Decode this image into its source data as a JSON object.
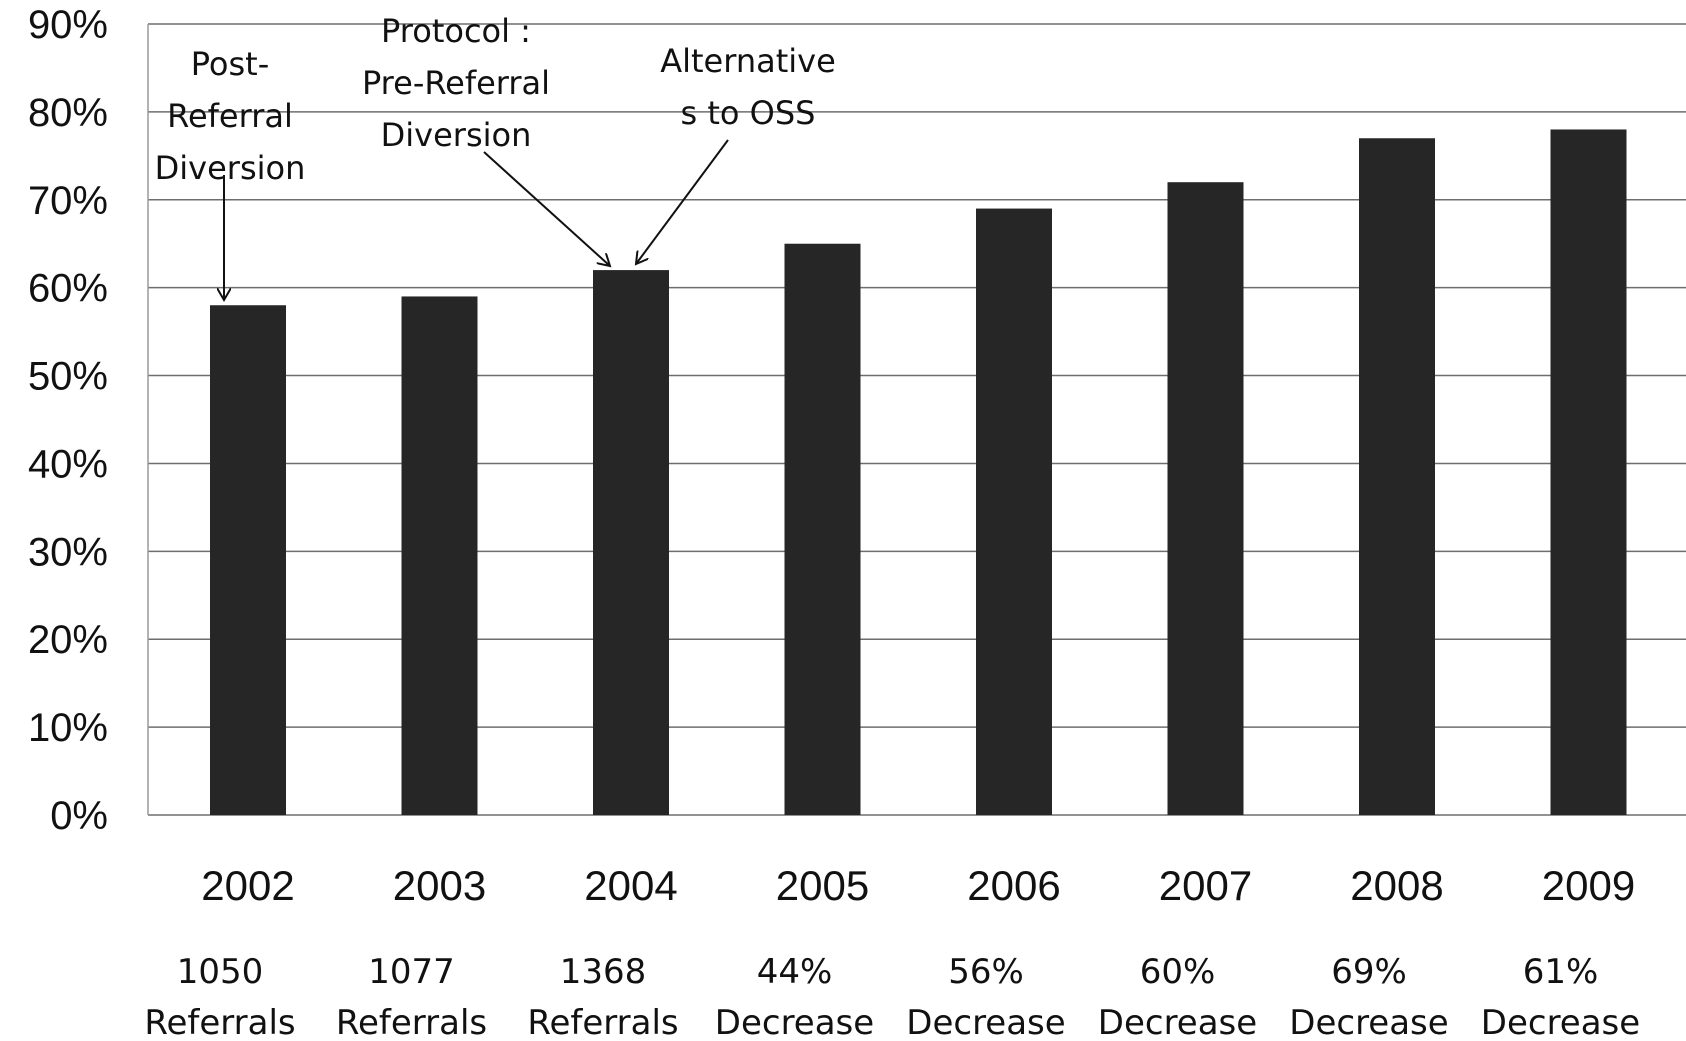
{
  "chart_data": {
    "type": "bar",
    "categories": [
      "2002",
      "2003",
      "2004",
      "2005",
      "2006",
      "2007",
      "2008",
      "2009"
    ],
    "values": [
      58,
      59,
      62,
      65,
      69,
      72,
      77,
      78
    ],
    "sub_labels": [
      [
        "1050",
        "Referrals"
      ],
      [
        "1077",
        "Referrals"
      ],
      [
        "1368",
        "Referrals"
      ],
      [
        "44%",
        "Decrease"
      ],
      [
        "56%",
        "Decrease"
      ],
      [
        "60%",
        "Decrease"
      ],
      [
        "69%",
        "Decrease"
      ],
      [
        "61%",
        "Decrease"
      ]
    ],
    "yticks": [
      "0%",
      "10%",
      "20%",
      "30%",
      "40%",
      "50%",
      "60%",
      "70%",
      "80%",
      "90%"
    ],
    "ylim": [
      0,
      90
    ],
    "grid": true,
    "bar_color": "#262626",
    "annotations": [
      {
        "lines": [
          "Post-",
          "Referral",
          "Diversion"
        ],
        "target": "2002"
      },
      {
        "lines": [
          "Protocol :",
          "Pre-Referral",
          "Diversion"
        ],
        "target": "2004"
      },
      {
        "lines": [
          "Alternative",
          "s to OSS"
        ],
        "target": "2004"
      }
    ]
  }
}
